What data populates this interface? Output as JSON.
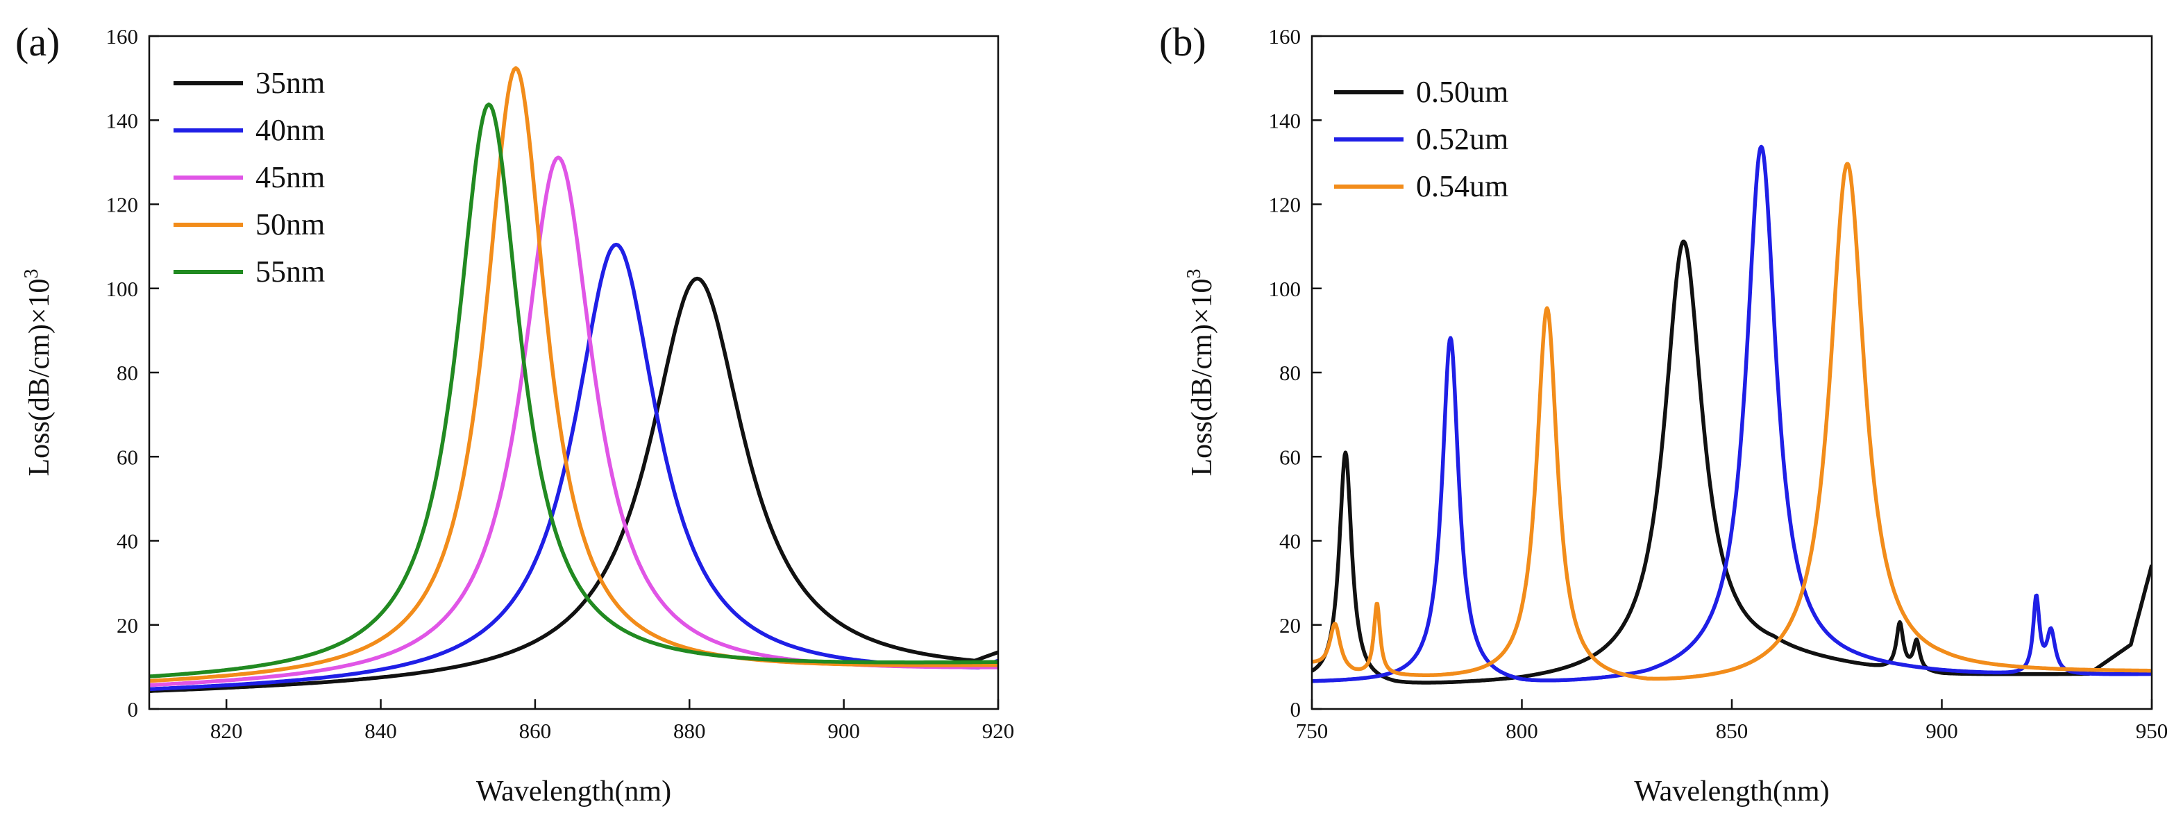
{
  "chart_data": [
    {
      "type": "line",
      "panel_label": "(a)",
      "xlabel": "Wavelength(nm)",
      "ylabel": "Loss(dB/cm)×10",
      "ylabel_exponent": "3",
      "xlim": [
        810,
        920
      ],
      "ylim": [
        0,
        160
      ],
      "xticks": [
        820,
        840,
        860,
        880,
        900,
        920
      ],
      "yticks": [
        0,
        20,
        40,
        60,
        80,
        100,
        120,
        140,
        160
      ],
      "legend_position": "top-left",
      "series": [
        {
          "name": "35nm",
          "color": "#111111",
          "peak_x": 881,
          "peak_y": 99.5,
          "base_y": 3.2,
          "width": 7.5,
          "tail": [
            [
              917,
              11.5
            ],
            [
              920,
              13.5
            ]
          ]
        },
        {
          "name": "40nm",
          "color": "#1f1fe6",
          "peak_x": 870.5,
          "peak_y": 108,
          "base_y": 3.5,
          "width": 6.6,
          "tail": [
            [
              917,
              9.5
            ],
            [
              920,
              11.5
            ]
          ]
        },
        {
          "name": "45nm",
          "color": "#e055e6",
          "peak_x": 863,
          "peak_y": 129,
          "base_y": 4.3,
          "width": 5.6,
          "tail": []
        },
        {
          "name": "50nm",
          "color": "#f28c1a",
          "peak_x": 857.5,
          "peak_y": 150.5,
          "base_y": 5.2,
          "width": 4.8,
          "tail": []
        },
        {
          "name": "55nm",
          "color": "#218a21",
          "peak_x": 854,
          "peak_y": 142,
          "base_y": 6.0,
          "width": 5.0,
          "tail": []
        }
      ]
    },
    {
      "type": "line",
      "panel_label": "(b)",
      "xlabel": "Wavelength(nm)",
      "ylabel": "Loss(dB/cm)×10",
      "ylabel_exponent": "3",
      "xlim": [
        750,
        950
      ],
      "ylim": [
        0,
        160
      ],
      "xticks": [
        750,
        800,
        850,
        900,
        950
      ],
      "yticks": [
        0,
        20,
        40,
        60,
        80,
        100,
        120,
        140,
        160
      ],
      "legend_position": "top-left",
      "series": [
        {
          "name": "0.50um",
          "color": "#111111",
          "baseline": [
            [
              750,
              6
            ],
            [
              770,
              4.8
            ],
            [
              800,
              5.5
            ],
            [
              830,
              7
            ],
            [
              860,
              11
            ],
            [
              885,
              8.5
            ],
            [
              900,
              7.5
            ],
            [
              935,
              8
            ],
            [
              945,
              15
            ],
            [
              950,
              34
            ]
          ],
          "peaks": [
            {
              "x": 758,
              "h": 55,
              "w": 1.8
            },
            {
              "x": 838.5,
              "h": 103,
              "w": 5.5
            },
            {
              "x": 890,
              "h": 11,
              "w": 1.0
            },
            {
              "x": 894,
              "h": 7,
              "w": 0.9
            }
          ]
        },
        {
          "name": "0.52um",
          "color": "#1f1fe6",
          "baseline": [
            [
              750,
              6
            ],
            [
              780,
              6
            ],
            [
              800,
              4.8
            ],
            [
              830,
              6
            ],
            [
              860,
              10
            ],
            [
              900,
              8
            ],
            [
              920,
              7.5
            ],
            [
              950,
              8
            ]
          ],
          "peaks": [
            {
              "x": 783,
              "h": 82,
              "w": 2.4
            },
            {
              "x": 857,
              "h": 124,
              "w": 4.3
            },
            {
              "x": 922.5,
              "h": 18,
              "w": 0.9
            },
            {
              "x": 926,
              "h": 10,
              "w": 1.2
            }
          ]
        },
        {
          "name": "0.54um",
          "color": "#f28c1a",
          "baseline": [
            [
              750,
              10
            ],
            [
              760,
              7.5
            ],
            [
              780,
              6.5
            ],
            [
              800,
              6
            ],
            [
              830,
              4.5
            ],
            [
              850,
              5
            ],
            [
              870,
              6
            ],
            [
              900,
              8
            ],
            [
              950,
              8.5
            ]
          ],
          "peaks": [
            {
              "x": 755.5,
              "h": 11,
              "w": 1.5
            },
            {
              "x": 765.5,
              "h": 17,
              "w": 0.9
            },
            {
              "x": 806,
              "h": 89,
              "w": 3.0
            },
            {
              "x": 877.5,
              "h": 123,
              "w": 5.0
            }
          ]
        }
      ]
    }
  ]
}
